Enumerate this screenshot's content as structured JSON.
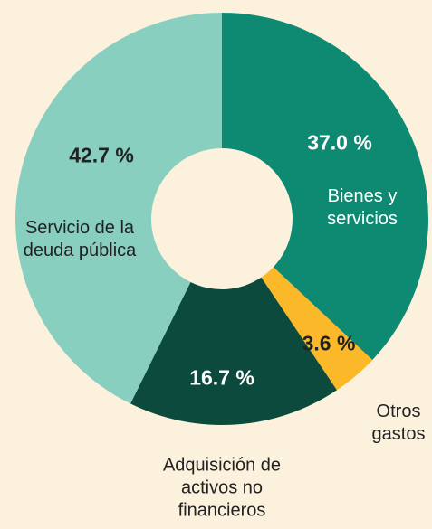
{
  "chart_data": {
    "type": "pie",
    "donut": true,
    "categories": [
      "Bienes y servicios",
      "Otros gastos",
      "Adquisición de activos no financieros",
      "Servicio de la deuda pública"
    ],
    "values": [
      37.0,
      3.6,
      16.7,
      42.7
    ],
    "value_labels": [
      "37.0 %",
      "3.6 %",
      "16.7 %",
      "42.7 %"
    ],
    "colors": [
      "#0e8a72",
      "#fbb829",
      "#0b4a3c",
      "#88cfc0"
    ]
  }
}
